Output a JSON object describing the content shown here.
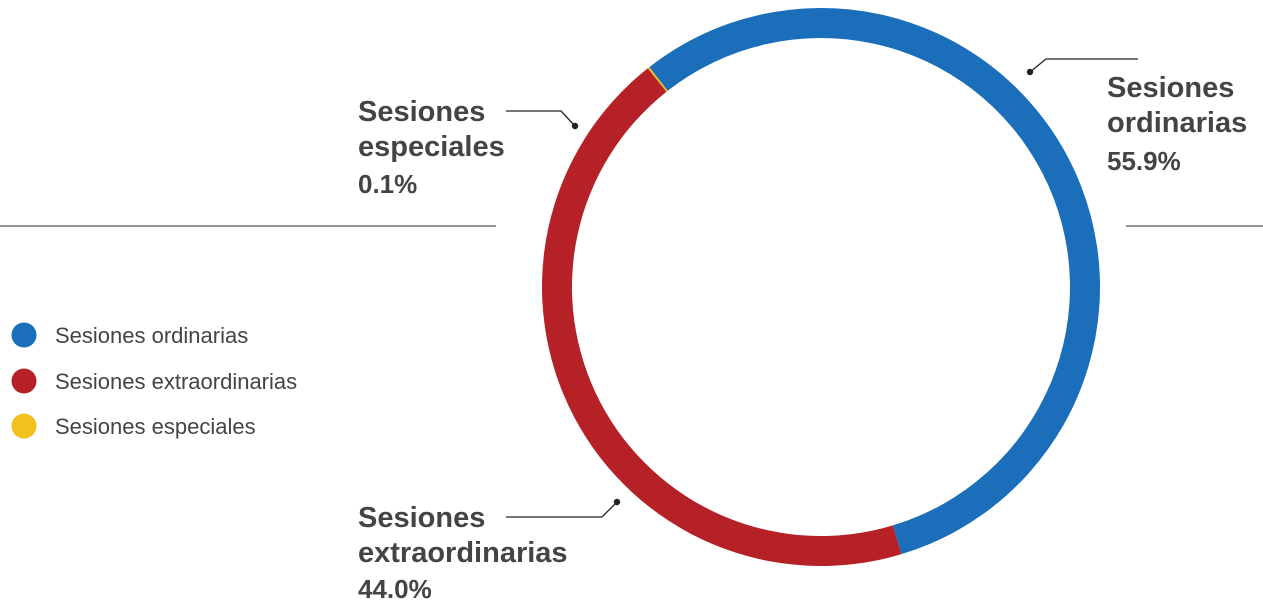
{
  "chart_data": {
    "type": "pie",
    "donut": true,
    "labels": [
      "Sesiones ordinarias",
      "Sesiones extraordinarias",
      "Sesiones especiales"
    ],
    "values": [
      55.9,
      44.0,
      0.1
    ],
    "value_labels": [
      "55.9%",
      "44.0%",
      "0.1%"
    ],
    "callout_lines": [
      [
        "Sesiones",
        "ordinarias"
      ],
      [
        "Sesiones",
        "extraordinarias"
      ],
      [
        "Sesiones",
        "especiales"
      ]
    ],
    "colors": [
      "#1b6eb9",
      "#b52126",
      "#f1c21b"
    ],
    "legend": {
      "position": "left",
      "entries": [
        "Sesiones ordinarias",
        "Sesiones extraordinarias",
        "Sesiones especiales"
      ]
    }
  }
}
